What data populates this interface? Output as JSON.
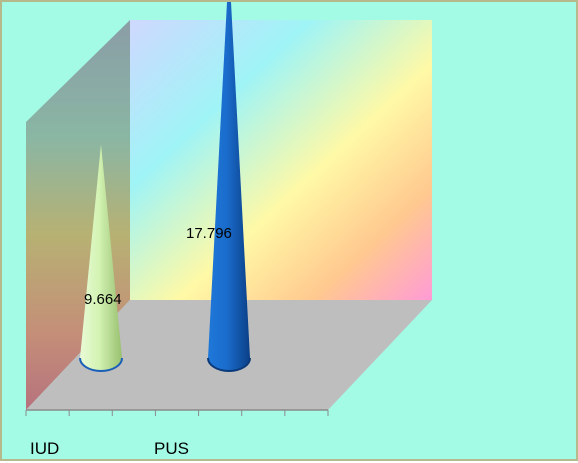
{
  "chart_data": {
    "type": "bar",
    "style": "3d-cone",
    "categories": [
      "IUD",
      "PUS"
    ],
    "values": [
      9.664,
      17.796
    ],
    "data_labels": [
      "9.664",
      "17.796"
    ],
    "series_colors": [
      "#c6efa3",
      "#1464c8"
    ],
    "ylim": [
      0,
      20
    ],
    "grid": false,
    "legend": "none",
    "title": "",
    "xlabel": "",
    "ylabel": ""
  },
  "colors": {
    "background": "#a3fbe6",
    "border": "#b6b98c",
    "floor": "#bebebe"
  }
}
